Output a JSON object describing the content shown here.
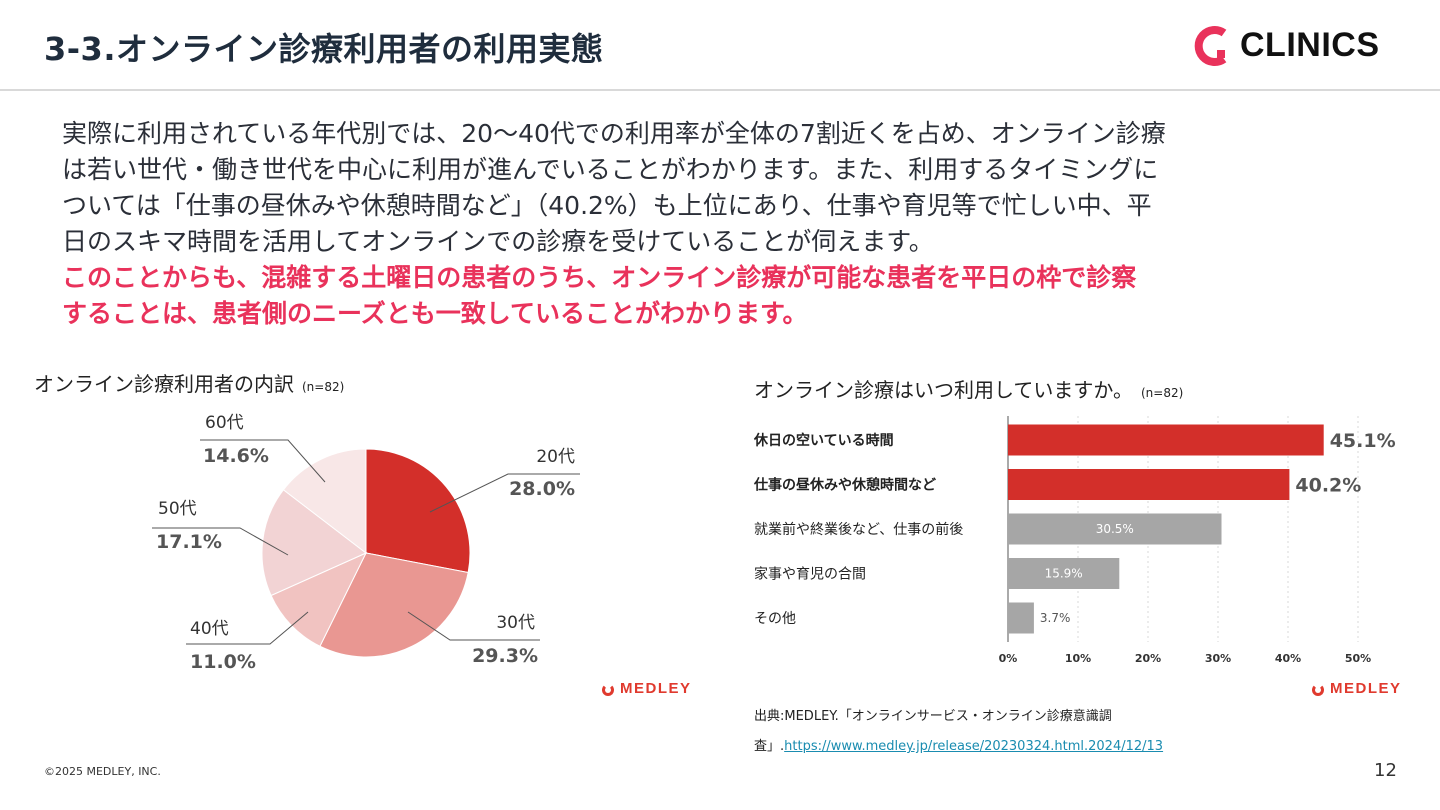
{
  "header": {
    "title": "3-3.オンライン診療利用者の利用実態",
    "logo_text": "CLINICS"
  },
  "body": {
    "paragraph_lines": [
      "実際に利用されている年代別では、20〜40代での利用率が全体の7割近くを占め、オンライン診療",
      "は若い世代・働き世代を中心に利用が進んでいることがわかります。また、利用するタイミングに",
      "ついては「仕事の昼休みや休憩時間など」（40.2%）も上位にあり、仕事や育児等で忙しい中、平",
      "日のスキマ時間を活用してオンラインでの診療を受けていることが伺えます。"
    ],
    "emphasis_lines": [
      "このことからも、混雑する土曜日の患者のうち、オンライン診療が可能な患者を平日の枠で診察",
      "することは、患者側のニーズとも一致していることがわかります。"
    ]
  },
  "chart_data": [
    {
      "type": "pie",
      "title": "オンライン診療利用者の内訳",
      "note": "(n=82)",
      "slices": [
        {
          "label": "20代",
          "value": 28.0,
          "value_label": "28.0%",
          "color": "#d32f2a"
        },
        {
          "label": "30代",
          "value": 29.3,
          "value_label": "29.3%",
          "color": "#e99792"
        },
        {
          "label": "40代",
          "value": 11.0,
          "value_label": "11.0%",
          "color": "#f1c3c1"
        },
        {
          "label": "50代",
          "value": 17.1,
          "value_label": "17.1%",
          "color": "#f2d3d4"
        },
        {
          "label": "60代",
          "value": 14.6,
          "value_label": "14.6%",
          "color": "#f8e7e7"
        }
      ],
      "source_logo": "MEDLEY"
    },
    {
      "type": "bar",
      "orientation": "horizontal",
      "title": "オンライン診療はいつ利用していますか。",
      "note": "(n=82)",
      "categories": [
        "休日の空いている時間",
        "仕事の昼休みや休憩時間など",
        "就業前や終業後など、仕事の前後",
        "家事や育児の合間",
        "その他"
      ],
      "values": [
        45.1,
        40.2,
        30.5,
        15.9,
        3.7
      ],
      "value_labels": [
        "45.1%",
        "40.2%",
        "30.5%",
        "15.9%",
        "3.7%"
      ],
      "highlight_colors": [
        "#d32f2a",
        "#d32f2a",
        "#a6a6a6",
        "#a6a6a6",
        "#a6a6a6"
      ],
      "xlim": [
        0,
        50
      ],
      "xticks": [
        "0%",
        "10%",
        "20%",
        "30%",
        "40%",
        "50%"
      ],
      "source_logo": "MEDLEY"
    }
  ],
  "source": {
    "prefix": "出典:MEDLEY.「オンラインサービス・オンライン診療意識調",
    "line2": "査」.",
    "link": "https://www.medley.jp/release/20230324.html.2024/12/13"
  },
  "footer": {
    "copyright": "©2025 MEDLEY, INC.",
    "page_number": "12"
  }
}
